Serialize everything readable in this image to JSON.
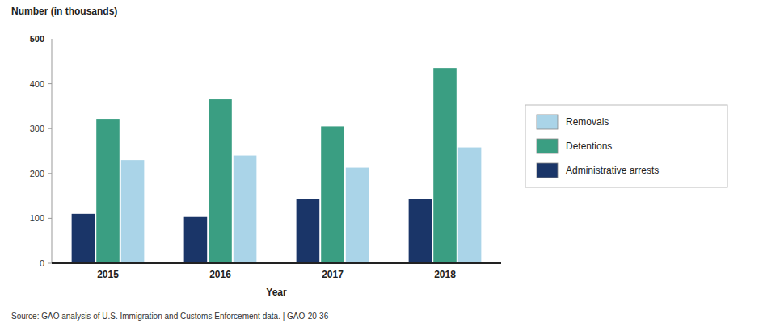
{
  "chart_data": {
    "type": "bar",
    "categories": [
      "2015",
      "2016",
      "2017",
      "2018"
    ],
    "series": [
      {
        "name": "Administrative arrests",
        "color": "#1a3568",
        "values": [
          110,
          103,
          143,
          143
        ]
      },
      {
        "name": "Detentions",
        "color": "#3a9e82",
        "values": [
          320,
          365,
          305,
          435
        ]
      },
      {
        "name": "Removals",
        "color": "#aad4e8",
        "values": [
          230,
          240,
          213,
          258
        ]
      }
    ],
    "x_label": "Year",
    "y_label": "Number (in thousands)",
    "ylim": [
      0,
      500
    ],
    "yticks": [
      0,
      100,
      200,
      300,
      400
    ],
    "annotations": [
      "500",
      "Source: GAO analysis of U.S. Immigration and Customs Enforcement data.  |  GAO-20-36"
    ],
    "grid": false,
    "legend": "right"
  }
}
